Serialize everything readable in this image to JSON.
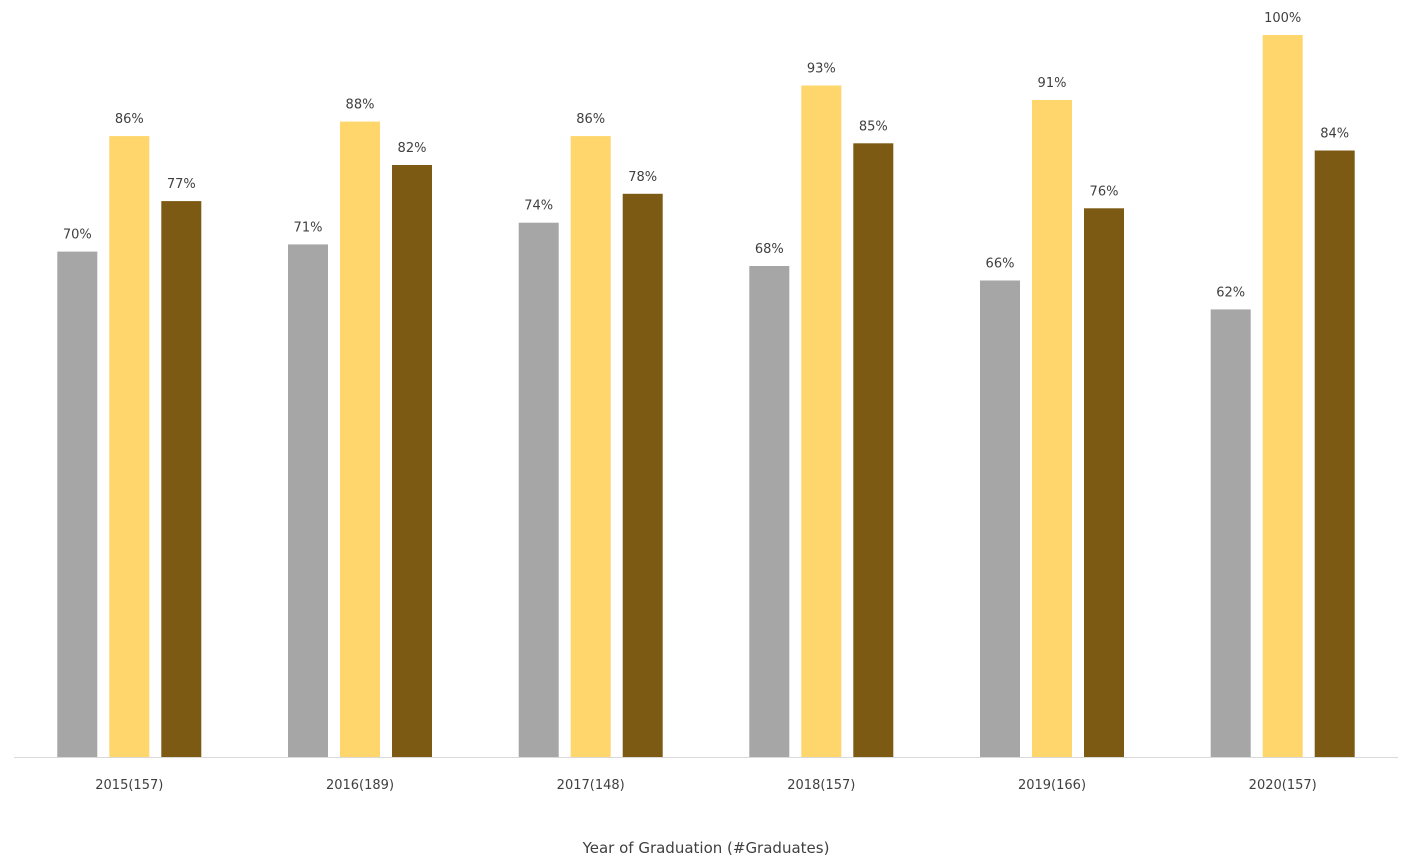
{
  "chart_data": {
    "type": "bar",
    "title": "",
    "xlabel": "Year of Graduation (#Graduates)",
    "ylabel": "",
    "ylim": [
      0,
      100
    ],
    "grid": false,
    "categories": [
      "2015(157)",
      "2016(189)",
      "2017(148)",
      "2018(157)",
      "2019(166)",
      "2020(157)"
    ],
    "series": [
      {
        "color": "#a6a6a6",
        "values": [
          70,
          71,
          74,
          68,
          66,
          62
        ],
        "labels": [
          "70%",
          "71%",
          "74%",
          "68%",
          "66%",
          "62%"
        ]
      },
      {
        "color": "#ffd66b",
        "values": [
          86,
          88,
          86,
          93,
          91,
          100
        ],
        "labels": [
          "86%",
          "88%",
          "86%",
          "93%",
          "91%",
          "100%"
        ]
      },
      {
        "color": "#7d5a13",
        "values": [
          77,
          82,
          78,
          85,
          76,
          84
        ],
        "labels": [
          "77%",
          "82%",
          "78%",
          "85%",
          "76%",
          "84%"
        ]
      }
    ],
    "axis_color": "#d9d9d9"
  }
}
